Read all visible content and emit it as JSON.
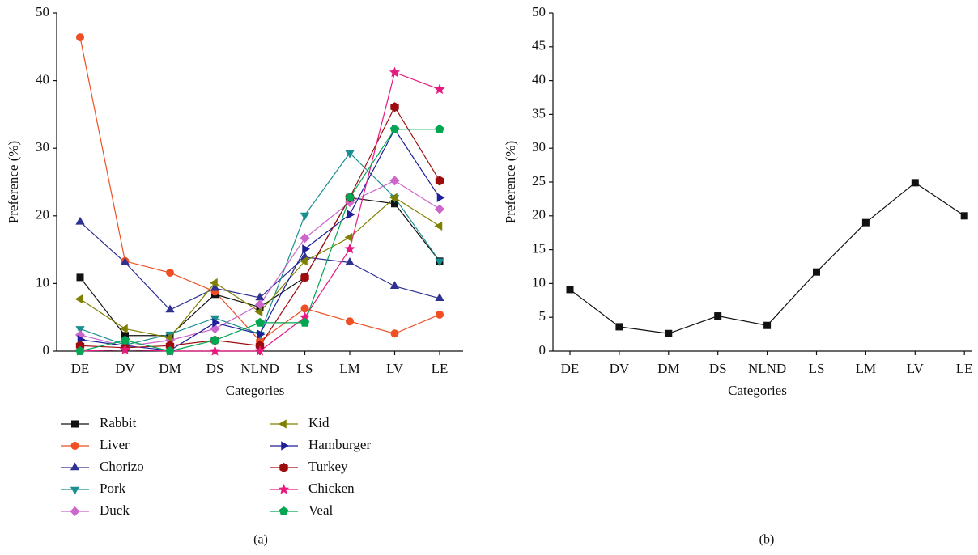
{
  "chart_data": [
    {
      "type": "line",
      "caption": "(a)",
      "x_label": "Categories",
      "y_label": "Preference (%)",
      "categories": [
        "DE",
        "DV",
        "DM",
        "DS",
        "NLND",
        "LS",
        "LM",
        "LV",
        "LE"
      ],
      "ylim": [
        0,
        50
      ],
      "yticks": [
        0,
        10,
        20,
        30,
        40,
        50
      ],
      "series": [
        {
          "name": "Rabbit",
          "color": "#111111",
          "marker": "square",
          "values": [
            10.9,
            2.3,
            2.3,
            8.4,
            6.5,
            10.9,
            22.7,
            21.8,
            13.3
          ]
        },
        {
          "name": "Liver",
          "color": "#f04e23",
          "marker": "circle",
          "values": [
            46.4,
            13.3,
            11.6,
            8.8,
            1.5,
            6.3,
            4.4,
            2.6,
            5.4
          ]
        },
        {
          "name": "Chorizo",
          "color": "#2e3192",
          "marker": "triangle-up",
          "values": [
            19.1,
            13.1,
            6.1,
            9.3,
            7.9,
            13.9,
            13.1,
            9.6,
            7.8
          ]
        },
        {
          "name": "Pork",
          "color": "#1b8f8f",
          "marker": "triangle-down",
          "values": [
            3.3,
            0.9,
            2.5,
            4.9,
            2.5,
            20.1,
            29.3,
            22.7,
            13.3
          ]
        },
        {
          "name": "Duck",
          "color": "#cc66cc",
          "marker": "diamond",
          "values": [
            2.4,
            0.7,
            1.6,
            3.3,
            6.9,
            16.7,
            22.0,
            25.2,
            21.0
          ]
        },
        {
          "name": "Kid",
          "color": "#808000",
          "marker": "triangle-left",
          "values": [
            7.7,
            3.3,
            2.0,
            10.1,
            5.8,
            13.3,
            16.8,
            22.7,
            18.5
          ]
        },
        {
          "name": "Hamburger",
          "color": "#1f1f99",
          "marker": "triangle-right",
          "values": [
            1.7,
            0.8,
            0.1,
            4.2,
            2.5,
            15.1,
            20.2,
            32.8,
            22.7
          ]
        },
        {
          "name": "Turkey",
          "color": "#9e0b0f",
          "marker": "hexagon",
          "values": [
            0.8,
            0.5,
            0.8,
            1.6,
            0.8,
            10.9,
            22.7,
            36.1,
            25.2
          ]
        },
        {
          "name": "Chicken",
          "color": "#e6197f",
          "marker": "star",
          "values": [
            0,
            0.2,
            0,
            0,
            0,
            5.0,
            15.1,
            41.2,
            38.7
          ]
        },
        {
          "name": "Veal",
          "color": "#00a651",
          "marker": "pentagon",
          "values": [
            0,
            1.6,
            0,
            1.6,
            4.2,
            4.2,
            22.7,
            32.8,
            32.8
          ]
        }
      ]
    },
    {
      "type": "line",
      "caption": "(b)",
      "x_label": "Categories",
      "y_label": "Preference (%)",
      "categories": [
        "DE",
        "DV",
        "DM",
        "DS",
        "NLND",
        "LS",
        "LM",
        "LV",
        "LE"
      ],
      "ylim": [
        0,
        50
      ],
      "yticks": [
        0,
        5,
        10,
        15,
        20,
        25,
        30,
        35,
        40,
        45,
        50
      ],
      "color": "#111111",
      "marker": "square",
      "values": [
        9.1,
        3.6,
        2.6,
        5.2,
        3.8,
        11.7,
        19.0,
        24.9,
        20.0
      ]
    }
  ]
}
